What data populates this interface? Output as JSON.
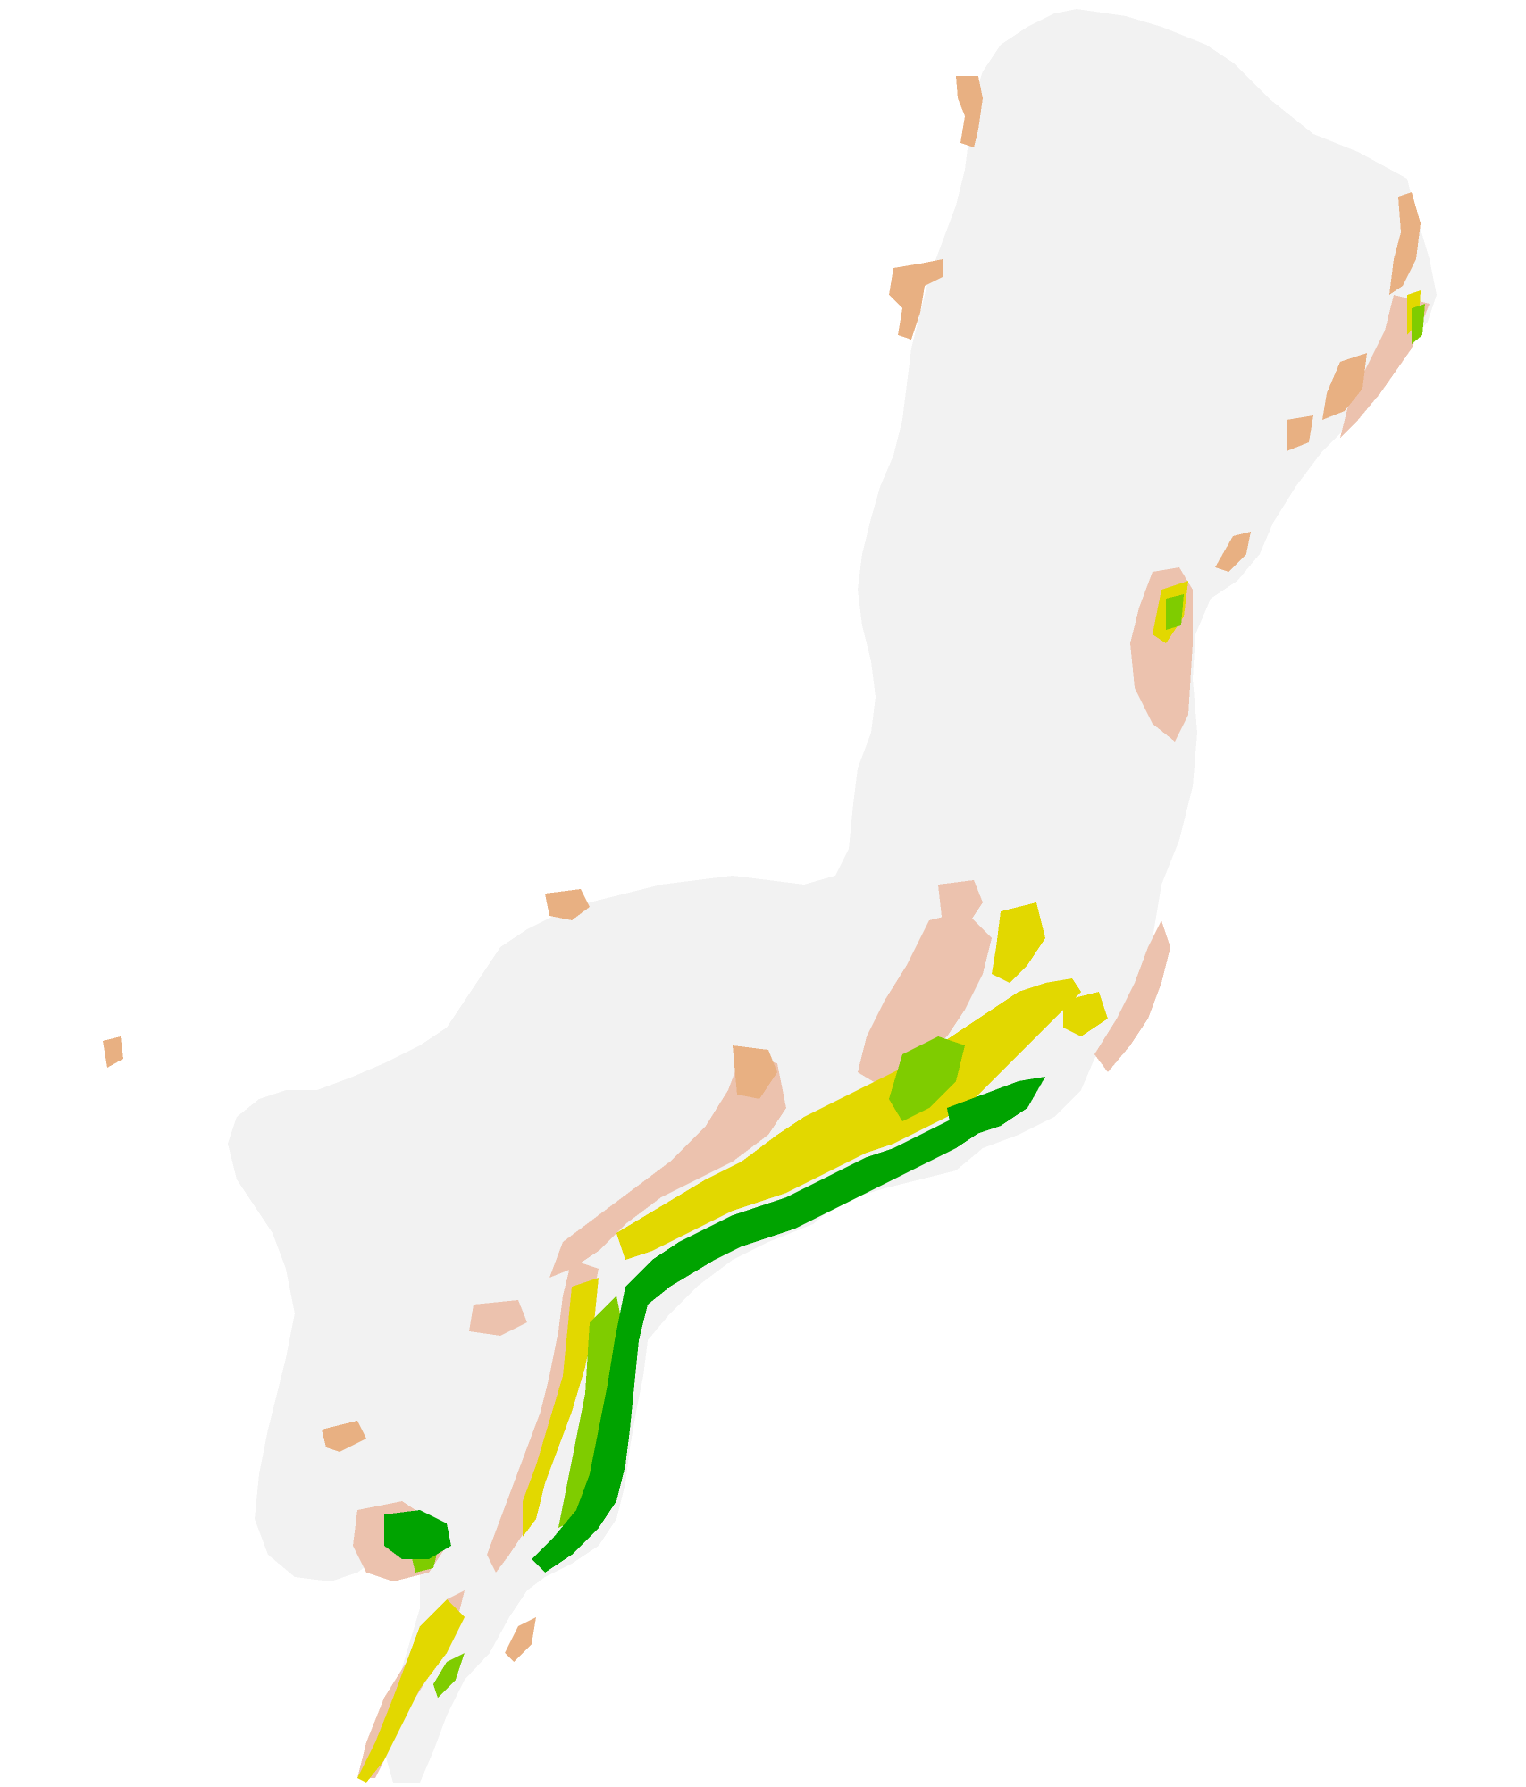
{
  "map": {
    "classes": [
      {
        "id": "background",
        "color": "#f2f2f2"
      },
      {
        "id": "low",
        "color": "#ecc2ae"
      },
      {
        "id": "low-medium",
        "color": "#e8b082"
      },
      {
        "id": "medium",
        "color": "#e2d800"
      },
      {
        "id": "medium-high",
        "color": "#7fcc00"
      },
      {
        "id": "high",
        "color": "#00a300"
      }
    ]
  }
}
